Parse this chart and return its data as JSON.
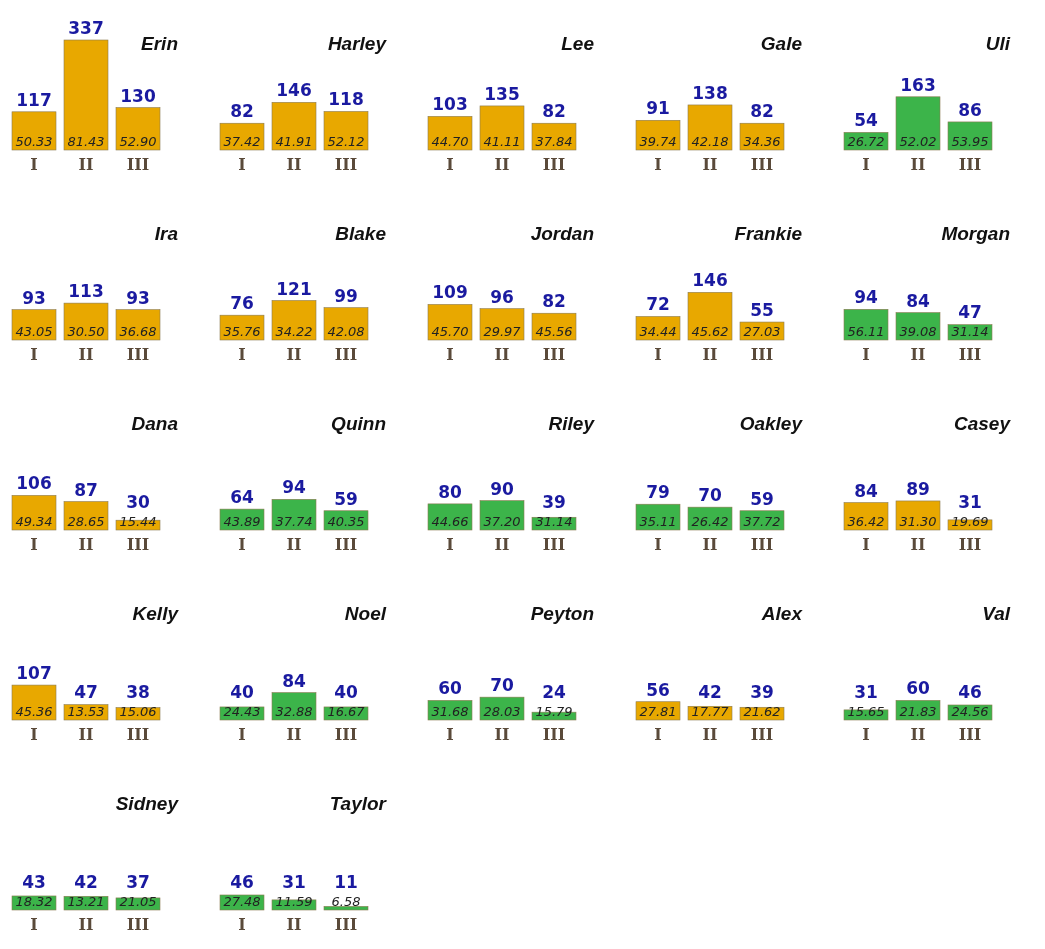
{
  "chart_data": [
    {
      "type": "bar",
      "title": "Erin",
      "categories": [
        "I",
        "II",
        "III"
      ],
      "values": [
        117,
        337,
        130
      ],
      "color": "#e8a800",
      "data_labels": true,
      "annotations": [
        "50.33",
        "81.43",
        "52.90"
      ]
    },
    {
      "type": "bar",
      "title": "Harley",
      "categories": [
        "I",
        "II",
        "III"
      ],
      "values": [
        82,
        146,
        118
      ],
      "color": "#e8a800",
      "data_labels": true,
      "annotations": [
        "37.42",
        "41.91",
        "52.12"
      ]
    },
    {
      "type": "bar",
      "title": "Lee",
      "categories": [
        "I",
        "II",
        "III"
      ],
      "values": [
        103,
        135,
        82
      ],
      "color": "#e8a800",
      "data_labels": true,
      "annotations": [
        "44.70",
        "41.11",
        "37.84"
      ]
    },
    {
      "type": "bar",
      "title": "Gale",
      "categories": [
        "I",
        "II",
        "III"
      ],
      "values": [
        91,
        138,
        82
      ],
      "color": "#e8a800",
      "data_labels": true,
      "annotations": [
        "39.74",
        "42.18",
        "34.36"
      ]
    },
    {
      "type": "bar",
      "title": "Uli",
      "categories": [
        "I",
        "II",
        "III"
      ],
      "values": [
        54,
        163,
        86
      ],
      "color": "#3cb44a",
      "data_labels": true,
      "annotations": [
        "26.72",
        "52.02",
        "53.95"
      ]
    },
    {
      "type": "bar",
      "title": "Ira",
      "categories": [
        "I",
        "II",
        "III"
      ],
      "values": [
        93,
        113,
        93
      ],
      "color": "#e8a800",
      "data_labels": true,
      "annotations": [
        "43.05",
        "30.50",
        "36.68"
      ]
    },
    {
      "type": "bar",
      "title": "Blake",
      "categories": [
        "I",
        "II",
        "III"
      ],
      "values": [
        76,
        121,
        99
      ],
      "color": "#e8a800",
      "data_labels": true,
      "annotations": [
        "35.76",
        "34.22",
        "42.08"
      ]
    },
    {
      "type": "bar",
      "title": "Jordan",
      "categories": [
        "I",
        "II",
        "III"
      ],
      "values": [
        109,
        96,
        82
      ],
      "color": "#e8a800",
      "data_labels": true,
      "annotations": [
        "45.70",
        "29.97",
        "45.56"
      ]
    },
    {
      "type": "bar",
      "title": "Frankie",
      "categories": [
        "I",
        "II",
        "III"
      ],
      "values": [
        72,
        146,
        55
      ],
      "color": "#e8a800",
      "data_labels": true,
      "annotations": [
        "34.44",
        "45.62",
        "27.03"
      ]
    },
    {
      "type": "bar",
      "title": "Morgan",
      "categories": [
        "I",
        "II",
        "III"
      ],
      "values": [
        94,
        84,
        47
      ],
      "color": "#3cb44a",
      "data_labels": true,
      "annotations": [
        "56.11",
        "39.08",
        "31.14"
      ]
    },
    {
      "type": "bar",
      "title": "Dana",
      "categories": [
        "I",
        "II",
        "III"
      ],
      "values": [
        106,
        87,
        30
      ],
      "color": "#e8a800",
      "data_labels": true,
      "annotations": [
        "49.34",
        "28.65",
        "15.44"
      ]
    },
    {
      "type": "bar",
      "title": "Quinn",
      "categories": [
        "I",
        "II",
        "III"
      ],
      "values": [
        64,
        94,
        59
      ],
      "color": "#3cb44a",
      "data_labels": true,
      "annotations": [
        "43.89",
        "37.74",
        "40.35"
      ]
    },
    {
      "type": "bar",
      "title": "Riley",
      "categories": [
        "I",
        "II",
        "III"
      ],
      "values": [
        80,
        90,
        39
      ],
      "color": "#3cb44a",
      "data_labels": true,
      "annotations": [
        "44.66",
        "37.20",
        "31.14"
      ]
    },
    {
      "type": "bar",
      "title": "Oakley",
      "categories": [
        "I",
        "II",
        "III"
      ],
      "values": [
        79,
        70,
        59
      ],
      "color": "#3cb44a",
      "data_labels": true,
      "annotations": [
        "35.11",
        "26.42",
        "37.72"
      ]
    },
    {
      "type": "bar",
      "title": "Casey",
      "categories": [
        "I",
        "II",
        "III"
      ],
      "values": [
        84,
        89,
        31
      ],
      "color": "#e8a800",
      "data_labels": true,
      "annotations": [
        "36.42",
        "31.30",
        "19.69"
      ]
    },
    {
      "type": "bar",
      "title": "Kelly",
      "categories": [
        "I",
        "II",
        "III"
      ],
      "values": [
        107,
        47,
        38
      ],
      "color": "#e8a800",
      "data_labels": true,
      "annotations": [
        "45.36",
        "13.53",
        "15.06"
      ]
    },
    {
      "type": "bar",
      "title": "Noel",
      "categories": [
        "I",
        "II",
        "III"
      ],
      "values": [
        40,
        84,
        40
      ],
      "color": "#3cb44a",
      "data_labels": true,
      "annotations": [
        "24.43",
        "32.88",
        "16.67"
      ]
    },
    {
      "type": "bar",
      "title": "Peyton",
      "categories": [
        "I",
        "II",
        "III"
      ],
      "values": [
        60,
        70,
        24
      ],
      "color": "#3cb44a",
      "data_labels": true,
      "annotations": [
        "31.68",
        "28.03",
        "15.79"
      ]
    },
    {
      "type": "bar",
      "title": "Alex",
      "categories": [
        "I",
        "II",
        "III"
      ],
      "values": [
        56,
        42,
        39
      ],
      "color": "#e8a800",
      "data_labels": true,
      "annotations": [
        "27.81",
        "17.77",
        "21.62"
      ]
    },
    {
      "type": "bar",
      "title": "Val",
      "categories": [
        "I",
        "II",
        "III"
      ],
      "values": [
        31,
        60,
        46
      ],
      "color": "#3cb44a",
      "data_labels": true,
      "annotations": [
        "15.65",
        "21.83",
        "24.56"
      ]
    },
    {
      "type": "bar",
      "title": "Sidney",
      "categories": [
        "I",
        "II",
        "III"
      ],
      "values": [
        43,
        42,
        37
      ],
      "color": "#3cb44a",
      "data_labels": true,
      "annotations": [
        "18.32",
        "13.21",
        "21.05"
      ]
    },
    {
      "type": "bar",
      "title": "Taylor",
      "categories": [
        "I",
        "II",
        "III"
      ],
      "values": [
        46,
        31,
        11
      ],
      "color": "#3cb44a",
      "data_labels": true,
      "annotations": [
        "27.48",
        "11.59",
        "6.58"
      ]
    }
  ]
}
